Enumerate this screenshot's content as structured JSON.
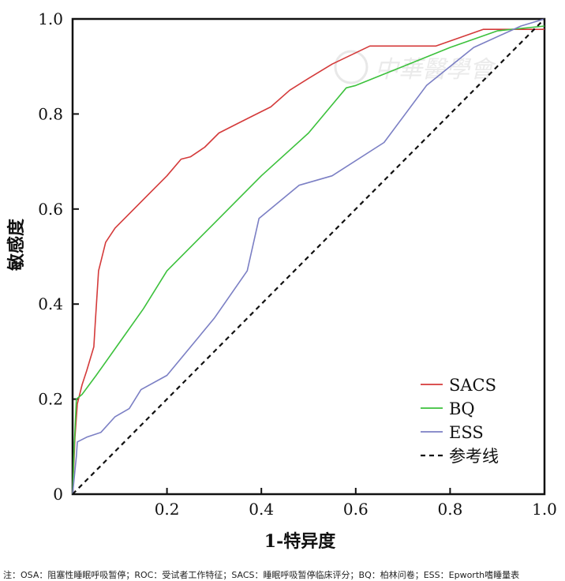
{
  "chart_data": {
    "type": "line",
    "xlabel": "1-特异度",
    "ylabel": "敏感度",
    "xlim": [
      0,
      1
    ],
    "ylim": [
      0,
      1
    ],
    "x_ticks": [
      "0.2",
      "0.4",
      "0.6",
      "0.8",
      "1.0"
    ],
    "y_ticks": [
      "0",
      "0.2",
      "0.4",
      "0.6",
      "0.8",
      "1.0"
    ],
    "legend_position": "bottom-right",
    "series": [
      {
        "name": "SACS",
        "color": "#d43a3a",
        "points": [
          [
            0,
            0
          ],
          [
            0.005,
            0.12
          ],
          [
            0.01,
            0.19
          ],
          [
            0.02,
            0.23
          ],
          [
            0.03,
            0.26
          ],
          [
            0.045,
            0.31
          ],
          [
            0.048,
            0.36
          ],
          [
            0.055,
            0.47
          ],
          [
            0.07,
            0.53
          ],
          [
            0.09,
            0.56
          ],
          [
            0.12,
            0.59
          ],
          [
            0.16,
            0.63
          ],
          [
            0.2,
            0.67
          ],
          [
            0.23,
            0.705
          ],
          [
            0.25,
            0.71
          ],
          [
            0.28,
            0.73
          ],
          [
            0.31,
            0.76
          ],
          [
            0.35,
            0.78
          ],
          [
            0.38,
            0.795
          ],
          [
            0.42,
            0.815
          ],
          [
            0.46,
            0.85
          ],
          [
            0.5,
            0.875
          ],
          [
            0.55,
            0.905
          ],
          [
            0.63,
            0.943
          ],
          [
            0.77,
            0.943
          ],
          [
            0.87,
            0.978
          ],
          [
            1,
            0.978
          ]
        ]
      },
      {
        "name": "BQ",
        "color": "#3cc13c",
        "points": [
          [
            0,
            0
          ],
          [
            0.003,
            0.09
          ],
          [
            0.008,
            0.2
          ],
          [
            0.02,
            0.21
          ],
          [
            0.05,
            0.25
          ],
          [
            0.1,
            0.32
          ],
          [
            0.15,
            0.39
          ],
          [
            0.2,
            0.47
          ],
          [
            0.3,
            0.57
          ],
          [
            0.4,
            0.67
          ],
          [
            0.5,
            0.76
          ],
          [
            0.58,
            0.855
          ],
          [
            0.6,
            0.86
          ],
          [
            0.7,
            0.9
          ],
          [
            0.8,
            0.94
          ],
          [
            0.9,
            0.975
          ],
          [
            1,
            0.985
          ]
        ]
      },
      {
        "name": "ESS",
        "color": "#7b7fc4",
        "points": [
          [
            0,
            0
          ],
          [
            0.008,
            0.08
          ],
          [
            0.01,
            0.11
          ],
          [
            0.03,
            0.12
          ],
          [
            0.06,
            0.13
          ],
          [
            0.09,
            0.163
          ],
          [
            0.12,
            0.18
          ],
          [
            0.145,
            0.22
          ],
          [
            0.2,
            0.25
          ],
          [
            0.3,
            0.37
          ],
          [
            0.37,
            0.47
          ],
          [
            0.395,
            0.58
          ],
          [
            0.48,
            0.65
          ],
          [
            0.55,
            0.67
          ],
          [
            0.66,
            0.74
          ],
          [
            0.75,
            0.86
          ],
          [
            0.85,
            0.94
          ],
          [
            0.95,
            0.985
          ],
          [
            1,
            1
          ]
        ]
      },
      {
        "name": "参考线",
        "color": "#111111",
        "dashed": true,
        "points": [
          [
            0,
            0
          ],
          [
            1,
            1
          ]
        ]
      }
    ]
  },
  "watermark": "中華醫學會",
  "footnote": "注：OSA：阻塞性睡眠呼吸暂停；ROC：受试者工作特征；SACS：睡眠呼吸暂停临床评分；BQ：柏林问卷；ESS：Epworth嗜睡量表"
}
